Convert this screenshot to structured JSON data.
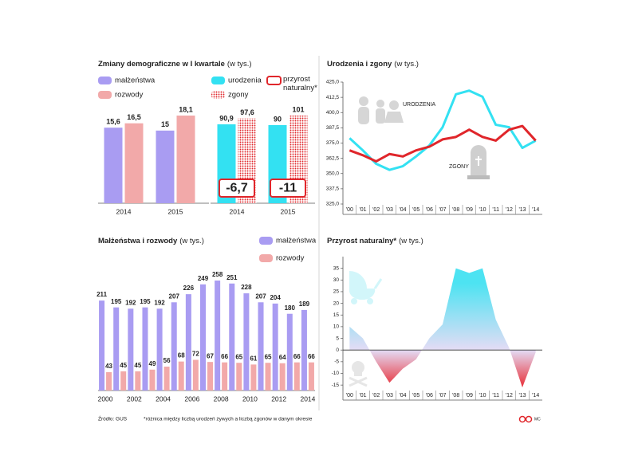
{
  "chart_data": [
    {
      "type": "bar",
      "title": "Zmiany demograficzne w I kwartale",
      "unit": "(w tys.)",
      "categories": [
        "2014",
        "2015"
      ],
      "series": [
        {
          "name": "małżeństwa",
          "color": "#a99cf2",
          "values": [
            15.6,
            15
          ],
          "value_labels": [
            "15,6",
            "15"
          ]
        },
        {
          "name": "rozwody",
          "color": "#f2a9a9",
          "values": [
            16.5,
            18.1
          ],
          "value_labels": [
            "16,5",
            "18,1"
          ]
        }
      ]
    },
    {
      "type": "bar",
      "categories": [
        "2014",
        "2015"
      ],
      "series": [
        {
          "name": "urodzenia",
          "color": "#33e1f2",
          "values": [
            90.9,
            90
          ],
          "value_labels": [
            "90,9",
            "90"
          ]
        },
        {
          "name": "zgony",
          "color": "#e0262b",
          "pattern": "dots",
          "values": [
            97.6,
            101
          ],
          "value_labels": [
            "97,6",
            "101"
          ]
        },
        {
          "name": "przyrost naturalny*",
          "color": "#e0262b",
          "style": "box",
          "values": [
            -6.7,
            -11
          ],
          "value_labels": [
            "-6,7",
            "-11"
          ]
        }
      ]
    },
    {
      "type": "line",
      "title": "Urodzenia i zgony",
      "unit": "(w tys.)",
      "categories": [
        "'00",
        "'01",
        "'02",
        "'03",
        "'04",
        "'05",
        "'06",
        "'07",
        "'08",
        "'09",
        "'10",
        "'11",
        "'12",
        "'13",
        "'14"
      ],
      "ylim": [
        325,
        425
      ],
      "yticks": [
        {
          "value": 325,
          "label": "325,0"
        },
        {
          "value": 337.5,
          "label": "337,5"
        },
        {
          "value": 350,
          "label": "350,0"
        },
        {
          "value": 362.5,
          "label": "362,5"
        },
        {
          "value": 375,
          "label": "375,0"
        },
        {
          "value": 387.5,
          "label": "387,5"
        },
        {
          "value": 400,
          "label": "400,0"
        },
        {
          "value": 412.5,
          "label": "412,5"
        },
        {
          "value": 425,
          "label": "425,0"
        }
      ],
      "series": [
        {
          "name": "URODZENIA",
          "color": "#33e1f2",
          "values": [
            379,
            369,
            358,
            353,
            356,
            364,
            373,
            388,
            415,
            418,
            413,
            390,
            388,
            371,
            377
          ]
        },
        {
          "name": "ZGONY",
          "color": "#e0262b",
          "values": [
            369,
            365,
            360,
            366,
            364,
            369,
            372,
            378,
            380,
            386,
            380,
            377,
            386,
            389,
            377
          ]
        }
      ]
    },
    {
      "type": "bar",
      "title": "Małżeństwa i rozwody",
      "unit": "(w tys.)",
      "categories": [
        "2000",
        null,
        "2002",
        null,
        "2004",
        null,
        "2006",
        null,
        "2008",
        null,
        "2010",
        null,
        "2012",
        null,
        "2014"
      ],
      "series": [
        {
          "name": "małżeństwa",
          "color": "#a99cf2",
          "values": [
            211,
            195,
            192,
            195,
            192,
            207,
            226,
            249,
            258,
            251,
            228,
            207,
            204,
            180,
            189
          ]
        },
        {
          "name": "rozwody",
          "color": "#f2a9a9",
          "values": [
            43,
            45,
            45,
            49,
            56,
            68,
            72,
            67,
            66,
            65,
            61,
            65,
            64,
            66,
            66
          ]
        }
      ]
    },
    {
      "type": "area",
      "title": "Przyrost naturalny*",
      "unit": "(w tys.)",
      "categories": [
        "'00",
        "'01",
        "'02",
        "'03",
        "'04",
        "'05",
        "'06",
        "'07",
        "'08",
        "'09",
        "'10",
        "'11",
        "'12",
        "'13",
        "'14"
      ],
      "ylim": [
        -17,
        40
      ],
      "yticks": [
        -15,
        -10,
        -5,
        0,
        5,
        10,
        15,
        20,
        25,
        30,
        35
      ],
      "positive_color": "#4de3f2",
      "negative_color": "#e8232b",
      "values": [
        10,
        5,
        -5,
        -14,
        -8,
        -4,
        5,
        11,
        35,
        33,
        35,
        13,
        1,
        -16,
        -1
      ]
    }
  ],
  "footer": {
    "source": "Źródło: GUS",
    "note": "*różnica między liczbą urodzeń żywych a liczbą zgonów w danym okresie",
    "logo": "MC"
  }
}
